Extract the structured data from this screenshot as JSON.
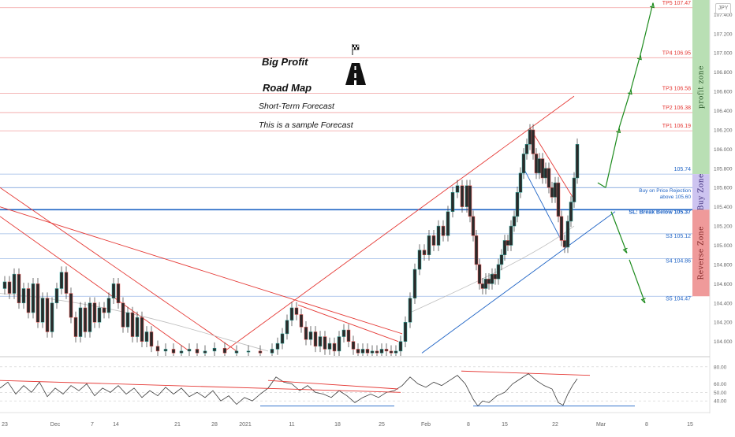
{
  "colors": {
    "up": "#26a69a",
    "down": "#ef5350",
    "candle": "#2a2a2a",
    "resistance": "#e53935",
    "support": "#1e63c5",
    "target": "#1b8a1b",
    "profit_zone": "#b9dfb4",
    "buy_zone": "#cdc4f0",
    "reverse_zone": "#ef9a9a",
    "rsi": "#3a3a3a"
  },
  "badge": "JPY",
  "annotations": {
    "title_1": "Big Profit",
    "title_2": "Road Map",
    "subtitle": "Short-Term Forecast",
    "note": "This is a sample Forecast",
    "road_icon": "road-with-flag-icon"
  },
  "zones": {
    "profit": "profit zone",
    "buy": "Buy Zone",
    "reverse": "Reverse Zone"
  },
  "chart_data": {
    "type": "candlestick",
    "title": "",
    "ylim": [
      103.85,
      107.55
    ],
    "y_ticks": [
      "104.000",
      "104.200",
      "104.400",
      "104.600",
      "104.800",
      "105.000",
      "105.200",
      "105.400",
      "105.600",
      "105.800",
      "106.000",
      "106.200",
      "106.400",
      "106.600",
      "106.800",
      "107.000",
      "107.200",
      "107.400"
    ],
    "x_ticks": [
      "23",
      "Dec",
      "7",
      "14",
      "21",
      "28",
      "2021",
      "11",
      "18",
      "25",
      "Feb",
      "8",
      "15",
      "22",
      "Mar",
      "8",
      "15"
    ],
    "levels": [
      {
        "label": "TP5 107.47",
        "value": 107.47,
        "kind": "target"
      },
      {
        "label": "TP4 106.95",
        "value": 106.95,
        "kind": "target"
      },
      {
        "label": "TP3 106.58",
        "value": 106.58,
        "kind": "target"
      },
      {
        "label": "TP2 106.38",
        "value": 106.38,
        "kind": "target"
      },
      {
        "label": "TP1 106.19",
        "value": 106.19,
        "kind": "target"
      },
      {
        "label": "105.74",
        "value": 105.74,
        "kind": "info"
      },
      {
        "label": "Buy on Price Rejection",
        "label2": "above 105.60",
        "value": 105.6,
        "kind": "buy"
      },
      {
        "label": "SL: Break Below 105.37",
        "value": 105.37,
        "kind": "stop"
      },
      {
        "label": "S3 105.12",
        "value": 105.12,
        "kind": "support"
      },
      {
        "label": "S4 104.86",
        "value": 104.86,
        "kind": "support"
      },
      {
        "label": "S5 104.47",
        "value": 104.47,
        "kind": "support"
      }
    ],
    "price_path": [
      [
        0,
        104.55
      ],
      [
        6,
        104.62
      ],
      [
        12,
        104.5
      ],
      [
        18,
        104.7
      ],
      [
        24,
        104.4
      ],
      [
        30,
        104.55
      ],
      [
        36,
        104.3
      ],
      [
        42,
        104.6
      ],
      [
        48,
        104.2
      ],
      [
        54,
        104.45
      ],
      [
        60,
        104.1
      ],
      [
        66,
        104.4
      ],
      [
        72,
        104.55
      ],
      [
        78,
        104.72
      ],
      [
        84,
        104.5
      ],
      [
        90,
        104.25
      ],
      [
        96,
        104.05
      ],
      [
        102,
        104.35
      ],
      [
        108,
        104.1
      ],
      [
        114,
        104.4
      ],
      [
        120,
        104.2
      ],
      [
        126,
        104.35
      ],
      [
        132,
        104.3
      ],
      [
        138,
        104.45
      ],
      [
        144,
        104.6
      ],
      [
        150,
        104.4
      ],
      [
        156,
        104.15
      ],
      [
        162,
        104.3
      ],
      [
        168,
        104.05
      ],
      [
        174,
        104.25
      ],
      [
        180,
        104.0
      ],
      [
        186,
        104.1
      ],
      [
        192,
        103.95
      ],
      [
        200,
        103.9
      ],
      [
        210,
        103.92
      ],
      [
        220,
        103.88
      ],
      [
        230,
        103.9
      ],
      [
        240,
        103.92
      ],
      [
        250,
        103.88
      ],
      [
        260,
        103.9
      ],
      [
        272,
        103.93
      ],
      [
        285,
        103.88
      ],
      [
        300,
        103.9
      ],
      [
        315,
        103.9
      ],
      [
        330,
        103.88
      ],
      [
        345,
        103.92
      ],
      [
        352,
        103.98
      ],
      [
        358,
        104.08
      ],
      [
        364,
        104.22
      ],
      [
        370,
        104.35
      ],
      [
        376,
        104.28
      ],
      [
        382,
        104.15
      ],
      [
        388,
        104.02
      ],
      [
        394,
        104.1
      ],
      [
        400,
        103.95
      ],
      [
        406,
        104.05
      ],
      [
        412,
        103.92
      ],
      [
        418,
        103.98
      ],
      [
        424,
        103.9
      ],
      [
        430,
        104.05
      ],
      [
        436,
        104.12
      ],
      [
        442,
        104.0
      ],
      [
        448,
        103.92
      ],
      [
        454,
        103.88
      ],
      [
        460,
        103.92
      ],
      [
        466,
        103.88
      ],
      [
        472,
        103.9
      ],
      [
        478,
        103.88
      ],
      [
        484,
        103.92
      ],
      [
        490,
        103.9
      ],
      [
        496,
        103.88
      ],
      [
        502,
        103.9
      ],
      [
        508,
        104.0
      ],
      [
        514,
        104.2
      ],
      [
        520,
        104.45
      ],
      [
        526,
        104.75
      ],
      [
        532,
        104.95
      ],
      [
        538,
        104.9
      ],
      [
        544,
        105.1
      ],
      [
        550,
        105.0
      ],
      [
        556,
        105.2
      ],
      [
        562,
        105.1
      ],
      [
        568,
        105.35
      ],
      [
        574,
        105.55
      ],
      [
        580,
        105.62
      ],
      [
        586,
        105.4
      ],
      [
        592,
        105.62
      ],
      [
        596,
        105.3
      ],
      [
        600,
        105.1
      ],
      [
        604,
        104.8
      ],
      [
        608,
        104.6
      ],
      [
        612,
        104.55
      ],
      [
        616,
        104.65
      ],
      [
        620,
        104.6
      ],
      [
        624,
        104.7
      ],
      [
        628,
        104.65
      ],
      [
        632,
        104.8
      ],
      [
        636,
        104.9
      ],
      [
        640,
        105.05
      ],
      [
        644,
        105.0
      ],
      [
        648,
        105.2
      ],
      [
        652,
        105.3
      ],
      [
        656,
        105.55
      ],
      [
        660,
        105.75
      ],
      [
        664,
        105.95
      ],
      [
        668,
        106.05
      ],
      [
        672,
        106.2
      ],
      [
        676,
        105.95
      ],
      [
        680,
        105.75
      ],
      [
        684,
        105.9
      ],
      [
        688,
        105.7
      ],
      [
        692,
        105.8
      ],
      [
        696,
        105.6
      ],
      [
        700,
        105.5
      ],
      [
        704,
        105.65
      ],
      [
        708,
        105.3
      ],
      [
        712,
        105.05
      ],
      [
        716,
        104.98
      ],
      [
        720,
        105.25
      ],
      [
        724,
        105.45
      ],
      [
        728,
        105.7
      ],
      [
        732,
        106.05
      ]
    ],
    "rsi_ticks": [
      "80.00",
      "60.00",
      "50.00",
      "40.00"
    ],
    "rsi_path": [
      [
        0,
        55
      ],
      [
        10,
        62
      ],
      [
        20,
        48
      ],
      [
        30,
        58
      ],
      [
        40,
        50
      ],
      [
        50,
        62
      ],
      [
        60,
        45
      ],
      [
        70,
        55
      ],
      [
        80,
        48
      ],
      [
        90,
        58
      ],
      [
        100,
        52
      ],
      [
        110,
        60
      ],
      [
        120,
        46
      ],
      [
        130,
        55
      ],
      [
        140,
        50
      ],
      [
        150,
        58
      ],
      [
        160,
        48
      ],
      [
        170,
        55
      ],
      [
        180,
        44
      ],
      [
        190,
        52
      ],
      [
        200,
        46
      ],
      [
        210,
        56
      ],
      [
        220,
        48
      ],
      [
        230,
        55
      ],
      [
        240,
        45
      ],
      [
        250,
        50
      ],
      [
        260,
        44
      ],
      [
        270,
        52
      ],
      [
        280,
        40
      ],
      [
        290,
        46
      ],
      [
        300,
        36
      ],
      [
        310,
        44
      ],
      [
        320,
        40
      ],
      [
        330,
        48
      ],
      [
        340,
        55
      ],
      [
        350,
        68
      ],
      [
        360,
        62
      ],
      [
        370,
        60
      ],
      [
        380,
        52
      ],
      [
        390,
        58
      ],
      [
        400,
        50
      ],
      [
        410,
        48
      ],
      [
        420,
        44
      ],
      [
        430,
        52
      ],
      [
        440,
        46
      ],
      [
        450,
        38
      ],
      [
        460,
        44
      ],
      [
        470,
        48
      ],
      [
        480,
        44
      ],
      [
        490,
        50
      ],
      [
        500,
        52
      ],
      [
        510,
        58
      ],
      [
        520,
        68
      ],
      [
        530,
        60
      ],
      [
        540,
        56
      ],
      [
        550,
        62
      ],
      [
        560,
        58
      ],
      [
        570,
        64
      ],
      [
        580,
        70
      ],
      [
        590,
        60
      ],
      [
        600,
        42
      ],
      [
        606,
        34
      ],
      [
        612,
        40
      ],
      [
        620,
        38
      ],
      [
        630,
        46
      ],
      [
        640,
        50
      ],
      [
        650,
        60
      ],
      [
        660,
        66
      ],
      [
        670,
        72
      ],
      [
        680,
        64
      ],
      [
        690,
        58
      ],
      [
        700,
        54
      ],
      [
        708,
        38
      ],
      [
        714,
        35
      ],
      [
        720,
        48
      ],
      [
        726,
        58
      ],
      [
        732,
        66
      ]
    ]
  }
}
